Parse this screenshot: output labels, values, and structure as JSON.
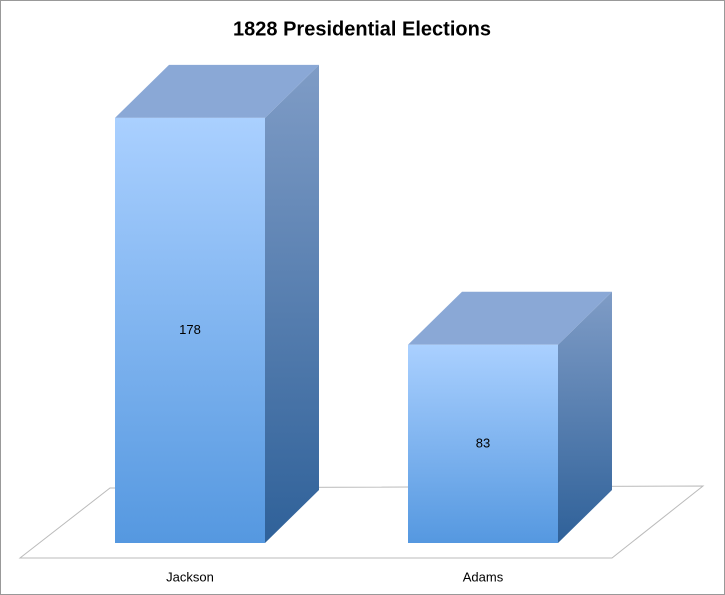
{
  "chart_data": {
    "type": "bar3d",
    "title": "1828 Presidential Elections",
    "categories": [
      "Jackson",
      "Adams"
    ],
    "values": [
      178,
      83
    ]
  }
}
